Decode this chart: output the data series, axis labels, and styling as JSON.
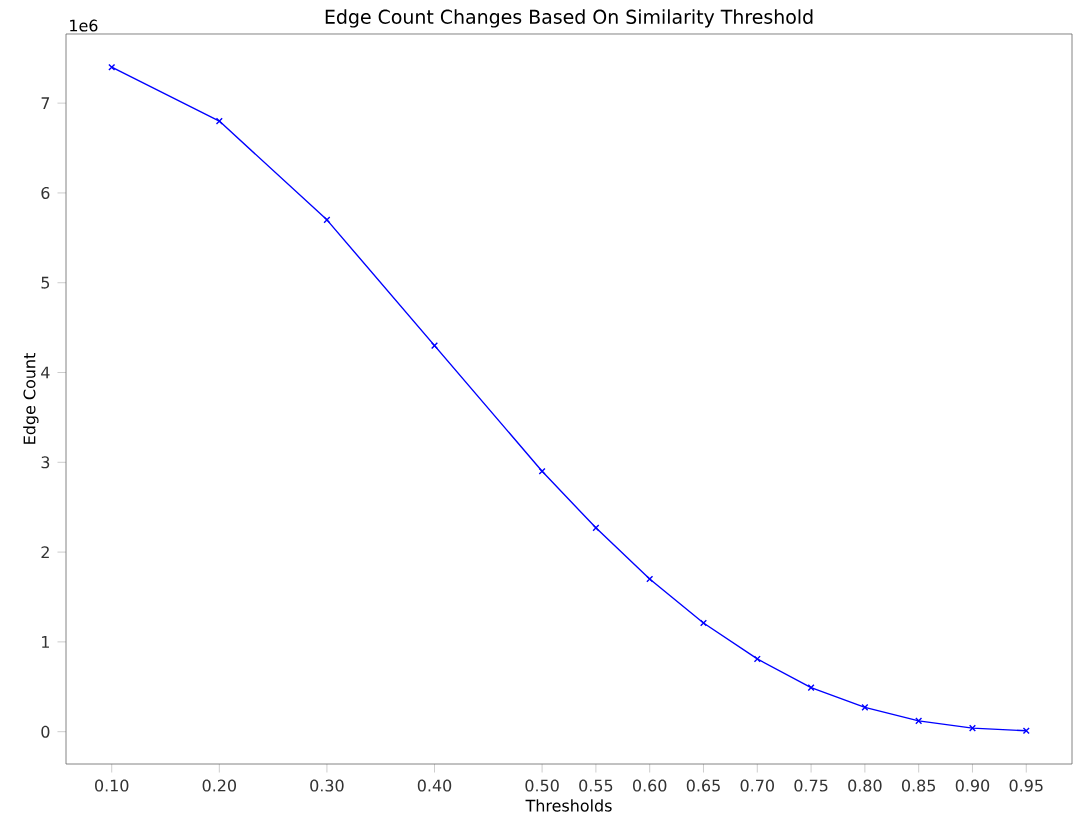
{
  "chart_data": {
    "type": "line",
    "title": "Edge Count Changes Based On Similarity Threshold",
    "xlabel": "Thresholds",
    "ylabel": "Edge Count",
    "annotations": [
      "1e6"
    ],
    "x": [
      0.1,
      0.2,
      0.3,
      0.4,
      0.5,
      0.55,
      0.6,
      0.65,
      0.7,
      0.75,
      0.8,
      0.85,
      0.9,
      0.95
    ],
    "series": [
      {
        "color": "#0000ff",
        "values": [
          7.4,
          6.8,
          5.7,
          4.3,
          2.9,
          2.27,
          1.7,
          1.21,
          0.81,
          0.49,
          0.27,
          0.12,
          0.04,
          0.01
        ]
      }
    ],
    "xlim": [
      0.0575,
      0.9925
    ],
    "ylim": [
      -0.36,
      7.77
    ],
    "xticks": [
      {
        "value": 0.1,
        "label": "0.10"
      },
      {
        "value": 0.2,
        "label": "0.20"
      },
      {
        "value": 0.3,
        "label": "0.30"
      },
      {
        "value": 0.4,
        "label": "0.40"
      },
      {
        "value": 0.5,
        "label": "0.50"
      },
      {
        "value": 0.55,
        "label": "0.55"
      },
      {
        "value": 0.6,
        "label": "0.60"
      },
      {
        "value": 0.65,
        "label": "0.65"
      },
      {
        "value": 0.7,
        "label": "0.70"
      },
      {
        "value": 0.75,
        "label": "0.75"
      },
      {
        "value": 0.8,
        "label": "0.80"
      },
      {
        "value": 0.85,
        "label": "0.85"
      },
      {
        "value": 0.9,
        "label": "0.90"
      },
      {
        "value": 0.95,
        "label": "0.95"
      }
    ],
    "yticks": [
      0,
      1,
      2,
      3,
      4,
      5,
      6,
      7
    ],
    "marker": "cross",
    "line_style": "solid"
  }
}
